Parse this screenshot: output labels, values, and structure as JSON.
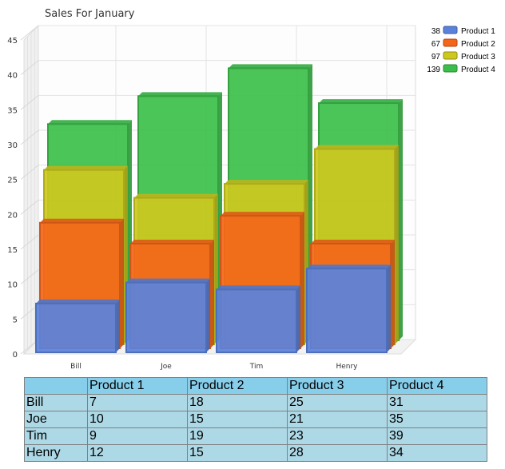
{
  "chart_data": {
    "type": "bar",
    "style": "3d-clustered-depth",
    "title": "Sales For January",
    "categories": [
      "Bill",
      "Joe",
      "Tim",
      "Henry"
    ],
    "series": [
      {
        "name": "Product 1",
        "total": "38",
        "color": "#5a82dc",
        "values": [
          7,
          10,
          9,
          12
        ]
      },
      {
        "name": "Product 2",
        "total": "67",
        "color": "#f4661a",
        "values": [
          18,
          15,
          19,
          15
        ]
      },
      {
        "name": "Product 3",
        "total": "97",
        "color": "#cdc81e",
        "values": [
          25,
          21,
          23,
          28
        ]
      },
      {
        "name": "Product 4",
        "total": "139",
        "color": "#3cbf4a",
        "values": [
          31,
          35,
          39,
          34
        ]
      }
    ],
    "ylim": [
      0,
      45
    ],
    "yticks": [
      "0",
      "5",
      "10",
      "15",
      "20",
      "25",
      "30",
      "35",
      "40",
      "45"
    ],
    "grid": true,
    "legend": "top-right"
  },
  "table": {
    "headers": [
      "",
      "Product 1",
      "Product 2",
      "Product 3",
      "Product 4"
    ],
    "rows": [
      [
        "Bill",
        "7",
        "18",
        "25",
        "31"
      ],
      [
        "Joe",
        "10",
        "15",
        "21",
        "35"
      ],
      [
        "Tim",
        "9",
        "19",
        "23",
        "39"
      ],
      [
        "Henry",
        "12",
        "15",
        "28",
        "34"
      ]
    ]
  }
}
